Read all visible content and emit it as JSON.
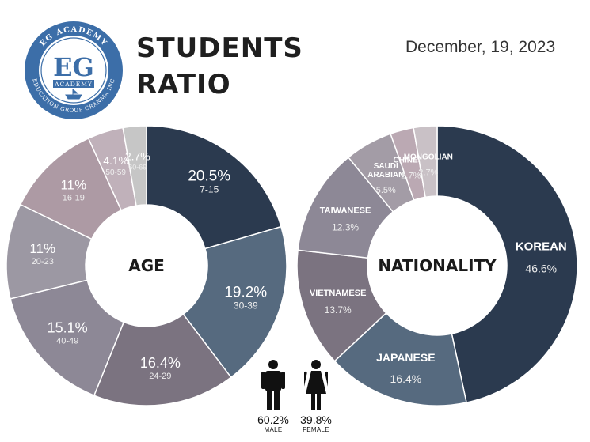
{
  "header": {
    "title_line1": "STUDENTS",
    "title_line2": "RATIO",
    "date": "December, 19, 2023"
  },
  "logo": {
    "ring_top": "EG ACADEMY",
    "ring_bottom": "EDUCATION GROUP GRANMA INC",
    "monogram": "EG",
    "banner": "ACADEMY",
    "colors": {
      "ring": "#3c6ea8",
      "inner": "#ffffff"
    }
  },
  "gender": {
    "male": {
      "value": "60.2%",
      "label": "MALE",
      "icon": "male-person-icon"
    },
    "female": {
      "value": "39.8%",
      "label": "FEMALE",
      "icon": "female-person-icon"
    }
  },
  "chart_data": [
    {
      "type": "donut",
      "center_label": "AGE",
      "segments": [
        {
          "name": "7-15",
          "value": 20.5,
          "label": "20.5%",
          "color": "#2b3a4f"
        },
        {
          "name": "30-39",
          "value": 19.2,
          "label": "19.2%",
          "color": "#566a7f"
        },
        {
          "name": "24-29",
          "value": 16.4,
          "label": "16.4%",
          "color": "#7b7380"
        },
        {
          "name": "40-49",
          "value": 15.1,
          "label": "15.1%",
          "color": "#8d8896"
        },
        {
          "name": "20-23",
          "value": 11,
          "label": "11%",
          "color": "#9c98a3"
        },
        {
          "name": "16-19",
          "value": 11,
          "label": "11%",
          "color": "#ad9aa4"
        },
        {
          "name": "50-59",
          "value": 4.1,
          "label": "4.1%",
          "color": "#c0b1ba"
        },
        {
          "name": "60-69",
          "value": 2.7,
          "label": "2.7%",
          "color": "#c6c6c6"
        }
      ]
    },
    {
      "type": "donut",
      "center_label": "NATIONALITY",
      "segments": [
        {
          "name": "KOREAN",
          "value": 46.6,
          "label": "46.6%",
          "color": "#2b3a4f"
        },
        {
          "name": "JAPANESE",
          "value": 16.4,
          "label": "16.4%",
          "color": "#566a7f"
        },
        {
          "name": "VIETNAMESE",
          "value": 13.7,
          "label": "13.7%",
          "color": "#7b7380"
        },
        {
          "name": "TAIWANESE",
          "value": 12.3,
          "label": "12.3%",
          "color": "#8d8896"
        },
        {
          "name": "SAUDI ARABIAN",
          "value": 5.5,
          "label": "5.5%",
          "color": "#a39ca6"
        },
        {
          "name": "CHINESE",
          "value": 2.7,
          "label": "2.7%",
          "color": "#bba9b3"
        },
        {
          "name": "MONGOLIAN",
          "value": 2.7,
          "label": "2.7%",
          "color": "#c9c1c6"
        }
      ]
    }
  ]
}
